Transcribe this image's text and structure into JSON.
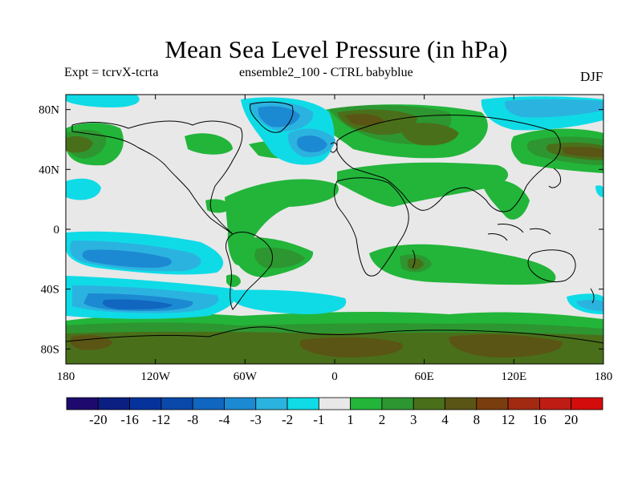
{
  "title": "Mean Sea Level Pressure (in hPa)",
  "left_string": "Expt = tcrvX-tcrta",
  "center_string": "ensemble2_100 - CTRL babyblue",
  "right_string": "DJF",
  "lat_labels": [
    "80N",
    "40N",
    "0",
    "40S",
    "80S"
  ],
  "lon_labels": [
    "180",
    "120W",
    "60W",
    "0",
    "60E",
    "120E",
    "180"
  ],
  "colorbar": {
    "labels": [
      "-20",
      "-16",
      "-12",
      "-8",
      "-4",
      "-3",
      "-2",
      "-1",
      "1",
      "2",
      "3",
      "4",
      "8",
      "12",
      "16",
      "20"
    ],
    "colors": [
      "#1e0a6e",
      "#0b1e82",
      "#06329b",
      "#0a48aa",
      "#1166bf",
      "#1c8ad2",
      "#2bb3e0",
      "#0fdbe6",
      "#e8e8e8",
      "#22b53a",
      "#2d9630",
      "#4a6f1a",
      "#5a5514",
      "#7a3d0e",
      "#a22a10",
      "#bf1d14",
      "#d40c0c"
    ]
  },
  "map": {
    "background_color": "#e8e8e8",
    "projection": "cylindrical equidistant",
    "lon_range": [
      -180,
      180
    ],
    "lat_range": [
      -90,
      90
    ]
  }
}
